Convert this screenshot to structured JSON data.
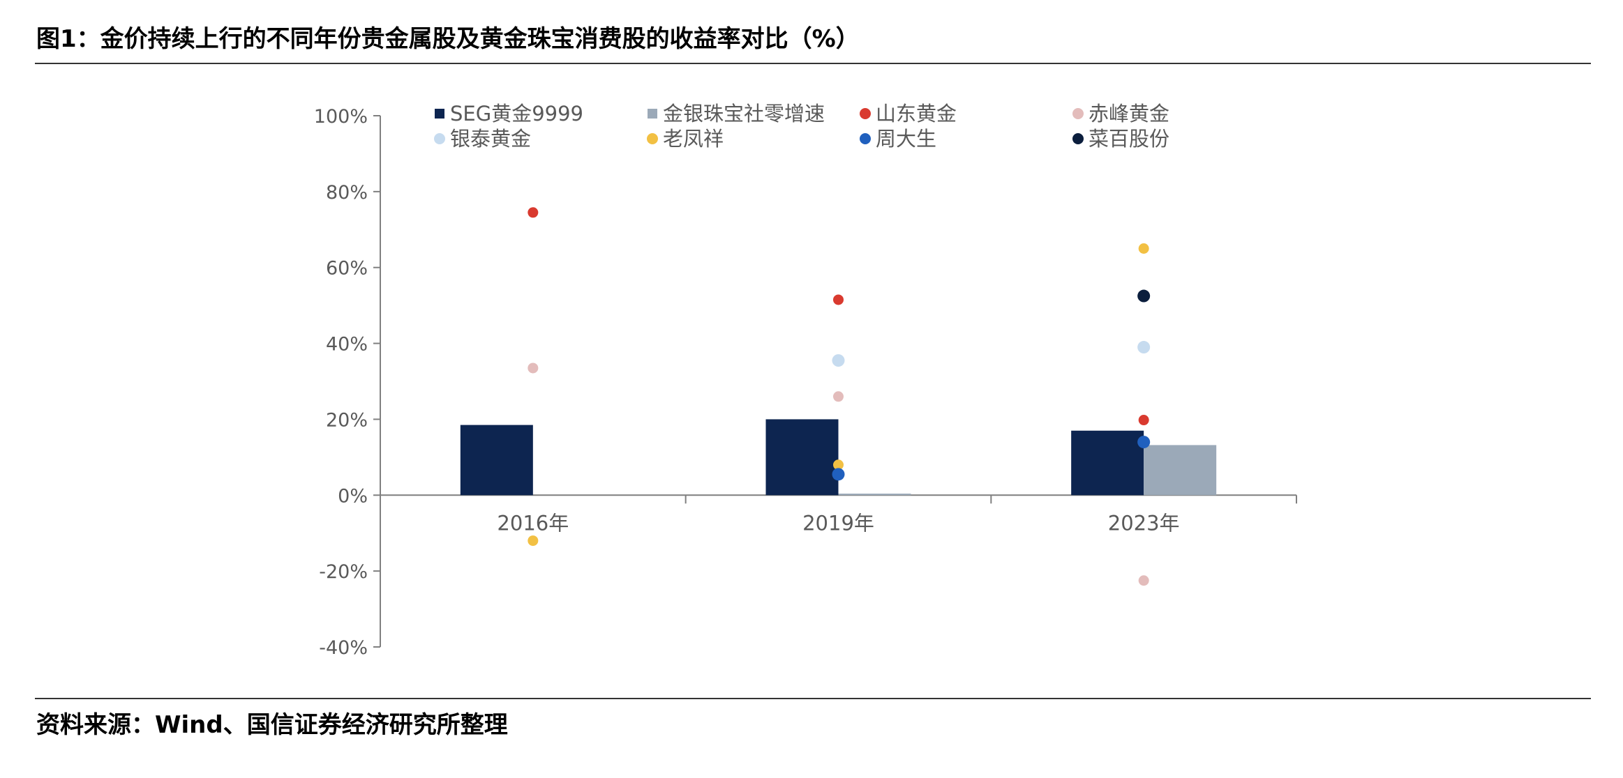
{
  "figure": {
    "title": "图1：金价持续上行的不同年份贵金属股及黄金珠宝消费股的收益率对比（%）",
    "source": "资料来源：Wind、国信证券经济研究所整理"
  },
  "chart_data": {
    "type": "bar",
    "title": "",
    "xlabel": "",
    "ylabel": "",
    "categories": [
      "2016年",
      "2019年",
      "2023年"
    ],
    "ylim": [
      -40,
      100
    ],
    "y_ticks": [
      "-40%",
      "-20%",
      "0%",
      "20%",
      "40%",
      "60%",
      "80%",
      "100%"
    ],
    "y_tick_values": [
      -40,
      -20,
      0,
      20,
      40,
      60,
      80,
      100
    ],
    "grid": false,
    "legend_position": "top",
    "bar_series": [
      {
        "name": "SEG黄金9999",
        "color": "#0d2550",
        "values": [
          18.5,
          20,
          17
        ]
      },
      {
        "name": "金银珠宝社零增速",
        "color": "#9ba9b8",
        "values": [
          null,
          0.4,
          13.2
        ]
      }
    ],
    "point_series": [
      {
        "name": "山东黄金",
        "color": "#d93a2f",
        "values": [
          74.5,
          51.5,
          19.8
        ]
      },
      {
        "name": "赤峰黄金",
        "color": "#e3bcbb",
        "values": [
          33.5,
          26,
          -22.5
        ]
      },
      {
        "name": "银泰黄金",
        "color": "#c6dbef",
        "values": [
          null,
          35.5,
          39
        ]
      },
      {
        "name": "老凤祥",
        "color": "#f2c043",
        "values": [
          -12,
          8,
          65
        ]
      },
      {
        "name": "周大生",
        "color": "#2060be",
        "values": [
          null,
          5.5,
          14
        ]
      },
      {
        "name": "菜百股份",
        "color": "#0b1e3d",
        "values": [
          null,
          null,
          52.5
        ]
      }
    ],
    "legend": [
      {
        "name": "SEG黄金9999",
        "marker": "square",
        "color": "#0d2550"
      },
      {
        "name": "金银珠宝社零增速",
        "marker": "square",
        "color": "#9ba9b8"
      },
      {
        "name": "山东黄金",
        "marker": "circle",
        "color": "#d93a2f"
      },
      {
        "name": "赤峰黄金",
        "marker": "circle",
        "color": "#e3bcbb"
      },
      {
        "name": "银泰黄金",
        "marker": "circle",
        "color": "#c6dbef"
      },
      {
        "name": "老凤祥",
        "marker": "circle",
        "color": "#f2c043"
      },
      {
        "name": "周大生",
        "marker": "circle",
        "color": "#2060be"
      },
      {
        "name": "菜百股份",
        "marker": "circle",
        "color": "#0b1e3d"
      }
    ]
  }
}
